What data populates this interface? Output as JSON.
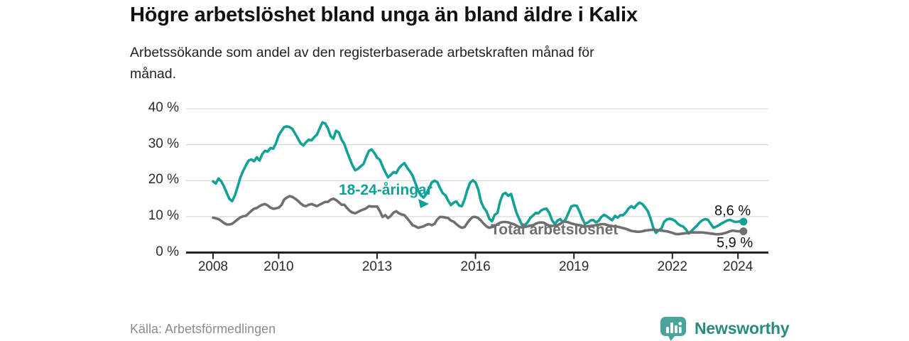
{
  "header": {
    "title": "Högre arbetslöshet bland unga än bland äldre i Kalix",
    "subtitle_line1": "Arbetssökande som andel av den registerbaserade arbetskraften månad för",
    "subtitle_line2": "månad."
  },
  "footer": {
    "source": "Källa: Arbetsförmedlingen",
    "brand": "Newsworthy"
  },
  "colors": {
    "youth": "#12a195",
    "total": "#6f6f6f",
    "grid": "#dadada",
    "axis": "#222222",
    "tick_text": "#2b2b2b",
    "value_label": "#111111",
    "brand_text": "#2b8a80",
    "brand_icon": "#4ba39a"
  },
  "chart_data": {
    "type": "line",
    "title": "Högre arbetslöshet bland unga än bland äldre i Kalix",
    "subtitle": "Arbetssökande som andel av den registerbaserade arbetskraften månad för månad.",
    "x_unit": "year-month",
    "x_start": 2008.0,
    "x_step": 0.0833,
    "ylim": [
      0,
      44
    ],
    "grid": true,
    "x_ticks": [
      2008,
      2010,
      2013,
      2016,
      2019,
      2022,
      2024
    ],
    "x_tick_labels": [
      "2008",
      "2010",
      "2013",
      "2016",
      "2019",
      "2022",
      "2024"
    ],
    "y_ticks": [
      0,
      10,
      20,
      30,
      40
    ],
    "y_tick_labels": [
      "0 %",
      "10 %",
      "20 %",
      "30 %",
      "40 %"
    ],
    "series": [
      {
        "name": "18-24-åringar",
        "color": "#12a195",
        "end_label": "8,6 %",
        "end_value": 8.6,
        "values": [
          19.8,
          19.2,
          20.6,
          19.8,
          18.4,
          16.6,
          14.9,
          14.3,
          15.9,
          18.3,
          20.9,
          22.7,
          24.2,
          25.6,
          25.9,
          25.4,
          26.5,
          25.6,
          27.4,
          28.3,
          28.1,
          29.1,
          28.9,
          30.4,
          32.6,
          33.8,
          34.9,
          35.1,
          34.9,
          34.4,
          33.1,
          31.8,
          30.4,
          29.8,
          30.7,
          31.4,
          31.2,
          32.1,
          32.8,
          34.5,
          36.2,
          35.9,
          34.6,
          32.4,
          31.7,
          33.9,
          33.4,
          31.4,
          30.2,
          28.1,
          26.1,
          24.2,
          22.9,
          23.3,
          24.0,
          24.6,
          26.5,
          28.3,
          28.7,
          27.7,
          26.4,
          25.8,
          24.0,
          22.4,
          20.9,
          21.6,
          22.4,
          22.1,
          23.5,
          24.3,
          24.9,
          23.6,
          22.6,
          21.4,
          19.3,
          17.2,
          15.9,
          15.3,
          16.3,
          17.9,
          19.5,
          20.0,
          19.6,
          18.0,
          16.5,
          15.9,
          14.4,
          13.2,
          13.9,
          14.2,
          13.1,
          12.9,
          14.8,
          17.4,
          19.4,
          20.1,
          19.5,
          17.5,
          14.2,
          12.5,
          11.5,
          9.4,
          8.7,
          10.5,
          11.0,
          14.3,
          16.2,
          16.6,
          15.8,
          16.3,
          13.6,
          11.0,
          9.3,
          7.7,
          7.6,
          8.4,
          9.6,
          10.3,
          11.0,
          10.9,
          11.7,
          12.1,
          12.2,
          11.0,
          9.0,
          7.9,
          8.9,
          9.3,
          8.4,
          9.3,
          11.0,
          12.8,
          13.1,
          13.0,
          11.5,
          9.5,
          8.0,
          8.3,
          8.9,
          9.1,
          8.4,
          8.8,
          9.9,
          10.5,
          10.1,
          9.5,
          9.0,
          10.2,
          9.7,
          10.4,
          10.4,
          11.2,
          12.3,
          12.9,
          12.4,
          13.3,
          13.9,
          13.5,
          12.6,
          11.5,
          9.5,
          6.9,
          5.5,
          6.2,
          6.7,
          8.6,
          9.2,
          9.4,
          9.2,
          8.8,
          8.0,
          7.5,
          7.2,
          6.4,
          5.3,
          6.0,
          6.8,
          7.5,
          8.4,
          9.0,
          9.3,
          9.1,
          8.0,
          6.9,
          7.2,
          7.6,
          8.1,
          8.5,
          8.9,
          9.1,
          8.8,
          8.5,
          8.6,
          8.7,
          8.6
        ]
      },
      {
        "name": "Total arbetslöshet",
        "color": "#6f6f6f",
        "end_label": "5,9 %",
        "end_value": 5.9,
        "values": [
          9.7,
          9.5,
          9.3,
          8.8,
          8.2,
          7.8,
          7.8,
          8.0,
          8.6,
          9.2,
          9.8,
          10.1,
          10.2,
          10.9,
          11.6,
          12.2,
          12.4,
          12.9,
          13.3,
          13.5,
          13.1,
          12.5,
          12.2,
          12.3,
          12.5,
          13.2,
          14.7,
          15.3,
          15.7,
          15.5,
          15.0,
          14.4,
          13.7,
          13.1,
          12.9,
          13.3,
          13.5,
          13.2,
          12.9,
          13.3,
          13.7,
          14.1,
          14.1,
          14.7,
          15.0,
          14.6,
          14.0,
          13.3,
          13.3,
          12.4,
          11.6,
          11.1,
          10.9,
          11.3,
          11.7,
          12.0,
          12.3,
          12.9,
          12.8,
          12.8,
          12.8,
          11.5,
          9.9,
          10.4,
          9.6,
          10.2,
          11.1,
          11.5,
          10.9,
          10.6,
          10.4,
          9.5,
          8.6,
          7.6,
          7.3,
          6.9,
          7.1,
          7.3,
          7.7,
          7.9,
          7.6,
          8.0,
          9.2,
          9.9,
          9.9,
          9.7,
          9.6,
          8.9,
          8.6,
          7.9,
          7.3,
          6.9,
          7.1,
          8.2,
          9.2,
          9.9,
          9.9,
          9.6,
          8.9,
          8.0,
          7.3,
          6.9,
          7.1,
          7.3,
          7.9,
          8.3,
          8.5,
          8.5,
          8.4,
          8.1,
          7.9,
          7.5,
          7.1,
          7.0,
          7.1,
          7.3,
          7.5,
          7.6,
          8.0,
          8.3,
          8.4,
          8.3,
          7.8,
          7.5,
          7.4,
          7.5,
          7.6,
          8.0,
          8.6,
          8.6,
          8.4,
          8.1,
          7.9,
          7.7,
          7.6,
          7.4,
          7.3,
          7.3,
          7.4,
          7.5,
          7.6,
          7.7,
          7.9,
          7.9,
          7.7,
          7.5,
          7.4,
          7.3,
          7.2,
          7.0,
          6.8,
          6.6,
          6.3,
          6.0,
          5.9,
          5.8,
          5.8,
          5.9,
          6.1,
          6.2,
          6.3,
          6.3,
          6.3,
          6.2,
          6.1,
          6.0,
          5.9,
          5.7,
          5.5,
          5.2,
          5.1,
          5.2,
          5.3,
          5.4,
          5.5,
          5.6,
          5.6,
          5.6,
          5.6,
          5.6,
          5.5,
          5.4,
          5.3,
          5.2,
          5.1,
          5.1,
          5.2,
          5.4,
          5.6,
          5.9,
          6.1,
          6.0,
          5.9,
          5.9,
          5.9
        ]
      }
    ],
    "legend_position": "inline-labels"
  }
}
